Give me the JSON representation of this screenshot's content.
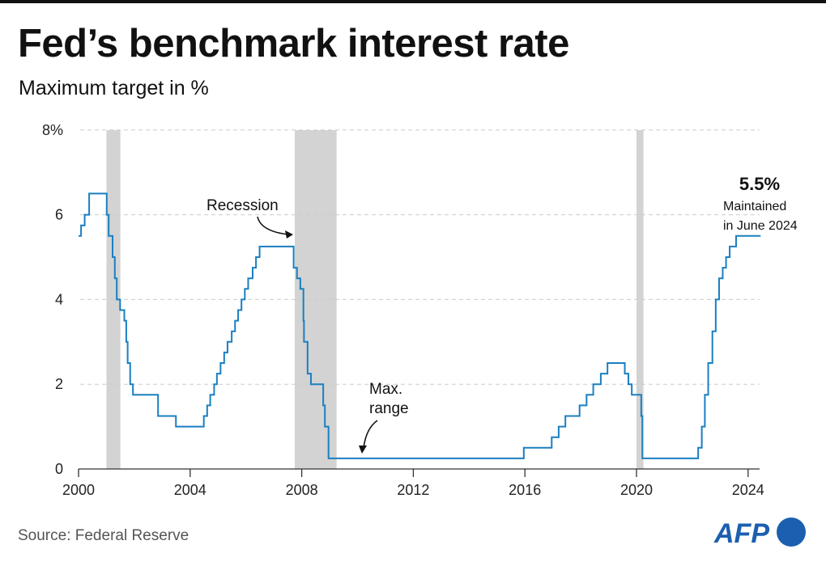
{
  "header": {
    "title": "Fed’s benchmark interest rate",
    "subtitle": "Maximum target in %"
  },
  "footer": {
    "source": "Source: Federal Reserve",
    "logo_text": "AFP"
  },
  "colors": {
    "line": "#1a7fc1",
    "recession": "#d3d3d3",
    "logo": "#1c5fb0"
  },
  "chart_data": {
    "type": "line",
    "step": true,
    "title": "Fed’s benchmark interest rate",
    "subtitle": "Maximum target in %",
    "xlim": [
      2000,
      2024.5
    ],
    "ylim": [
      0,
      8
    ],
    "x_ticks": [
      "2000",
      "2004",
      "2008",
      "2012",
      "2016",
      "2020",
      "2024"
    ],
    "x_tick_values": [
      2000,
      2004,
      2008,
      2012,
      2016,
      2020,
      2024
    ],
    "y_ticks": [
      "0",
      "2",
      "4",
      "6",
      "8%"
    ],
    "y_tick_values": [
      0,
      2,
      4,
      6,
      8
    ],
    "grid": "horizontal dashed",
    "recessions": [
      [
        2001.0,
        2001.5
      ],
      [
        2007.75,
        2009.25
      ],
      [
        2020.0,
        2020.25
      ]
    ],
    "series": [
      {
        "points": [
          [
            2000.0,
            5.5
          ],
          [
            2000.09,
            5.75
          ],
          [
            2000.22,
            6.0
          ],
          [
            2000.38,
            6.5
          ],
          [
            2001.01,
            6.0
          ],
          [
            2001.08,
            5.5
          ],
          [
            2001.22,
            5.0
          ],
          [
            2001.3,
            4.5
          ],
          [
            2001.37,
            4.0
          ],
          [
            2001.49,
            3.75
          ],
          [
            2001.64,
            3.5
          ],
          [
            2001.71,
            3.0
          ],
          [
            2001.76,
            2.5
          ],
          [
            2001.85,
            2.0
          ],
          [
            2001.95,
            1.75
          ],
          [
            2002.85,
            1.25
          ],
          [
            2003.49,
            1.0
          ],
          [
            2004.49,
            1.25
          ],
          [
            2004.61,
            1.5
          ],
          [
            2004.72,
            1.75
          ],
          [
            2004.86,
            2.0
          ],
          [
            2004.96,
            2.25
          ],
          [
            2005.09,
            2.5
          ],
          [
            2005.22,
            2.75
          ],
          [
            2005.34,
            3.0
          ],
          [
            2005.49,
            3.25
          ],
          [
            2005.61,
            3.5
          ],
          [
            2005.72,
            3.75
          ],
          [
            2005.84,
            4.0
          ],
          [
            2005.96,
            4.25
          ],
          [
            2006.08,
            4.5
          ],
          [
            2006.24,
            4.75
          ],
          [
            2006.36,
            5.0
          ],
          [
            2006.49,
            5.25
          ],
          [
            2007.71,
            4.75
          ],
          [
            2007.83,
            4.5
          ],
          [
            2007.95,
            4.25
          ],
          [
            2008.06,
            3.5
          ],
          [
            2008.08,
            3.0
          ],
          [
            2008.21,
            2.25
          ],
          [
            2008.33,
            2.0
          ],
          [
            2008.77,
            1.5
          ],
          [
            2008.83,
            1.0
          ],
          [
            2008.96,
            0.25
          ],
          [
            2015.96,
            0.5
          ],
          [
            2016.96,
            0.75
          ],
          [
            2017.21,
            1.0
          ],
          [
            2017.45,
            1.25
          ],
          [
            2017.96,
            1.5
          ],
          [
            2018.21,
            1.75
          ],
          [
            2018.45,
            2.0
          ],
          [
            2018.72,
            2.25
          ],
          [
            2018.96,
            2.5
          ],
          [
            2019.58,
            2.25
          ],
          [
            2019.71,
            2.0
          ],
          [
            2019.83,
            1.75
          ],
          [
            2020.17,
            1.25
          ],
          [
            2020.21,
            0.25
          ],
          [
            2022.21,
            0.5
          ],
          [
            2022.34,
            1.0
          ],
          [
            2022.45,
            1.75
          ],
          [
            2022.57,
            2.5
          ],
          [
            2022.72,
            3.25
          ],
          [
            2022.84,
            4.0
          ],
          [
            2022.96,
            4.5
          ],
          [
            2023.09,
            4.75
          ],
          [
            2023.21,
            5.0
          ],
          [
            2023.34,
            5.25
          ],
          [
            2023.57,
            5.5
          ],
          [
            2024.45,
            5.5
          ]
        ]
      }
    ],
    "annotations": {
      "recession": "Recession",
      "max_range_1": "Max.",
      "max_range_2": "range",
      "latest_value": "5.5%",
      "latest_note_1": "Maintained",
      "latest_note_2": "in June 2024"
    }
  }
}
